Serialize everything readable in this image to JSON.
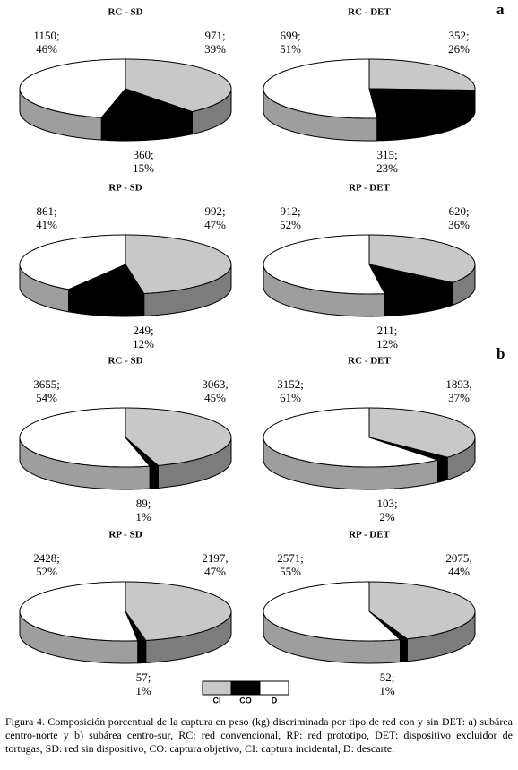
{
  "panel_labels": [
    "a",
    "b"
  ],
  "legend": {
    "labels": [
      "CI",
      "CO",
      "D"
    ],
    "colors": [
      "#c8c8c8",
      "#000000",
      "#ffffff"
    ]
  },
  "chart_data": [
    {
      "type": "pie",
      "title": "RC - SD",
      "values": [
        971,
        360,
        1150
      ],
      "value_labels": [
        "971;",
        "360;",
        "1150;"
      ],
      "percent_labels": [
        "39%",
        "15%",
        "46%"
      ]
    },
    {
      "type": "pie",
      "title": "RC - DET",
      "values": [
        352,
        315,
        699
      ],
      "value_labels": [
        "352;",
        "315;",
        "699;"
      ],
      "percent_labels": [
        "26%",
        "23%",
        "51%"
      ]
    },
    {
      "type": "pie",
      "title": "RP - SD",
      "values": [
        992,
        249,
        861
      ],
      "value_labels": [
        "992;",
        "249;",
        "861;"
      ],
      "percent_labels": [
        "47%",
        "12%",
        "41%"
      ]
    },
    {
      "type": "pie",
      "title": "RP - DET",
      "values": [
        620,
        211,
        912
      ],
      "value_labels": [
        "620;",
        "211;",
        "912;"
      ],
      "percent_labels": [
        "36%",
        "12%",
        "52%"
      ]
    },
    {
      "type": "pie",
      "title": "RC - SD",
      "values": [
        3063,
        89,
        3655
      ],
      "value_labels": [
        "3063,",
        "89;",
        "3655;"
      ],
      "percent_labels": [
        "45%",
        "1%",
        "54%"
      ]
    },
    {
      "type": "pie",
      "title": "RC - DET",
      "values": [
        1893,
        103,
        3152
      ],
      "value_labels": [
        "1893,",
        "103;",
        "3152;"
      ],
      "percent_labels": [
        "37%",
        "2%",
        "61%"
      ]
    },
    {
      "type": "pie",
      "title": "RP - SD",
      "values": [
        2197,
        57,
        2428
      ],
      "value_labels": [
        "2197,",
        "57;",
        "2428;"
      ],
      "percent_labels": [
        "47%",
        "1%",
        "52%"
      ]
    },
    {
      "type": "pie",
      "title": "RP - DET",
      "values": [
        2075,
        52,
        2571
      ],
      "value_labels": [
        "2075,",
        "52;",
        "2571;"
      ],
      "percent_labels": [
        "44%",
        "1%",
        "55%"
      ]
    }
  ],
  "caption": "Figura 4. Composición porcentual de la captura en peso (kg) discriminada por tipo de red con y sin DET: a) subárea centro-norte y b) subárea centro-sur, RC: red convencional, RP: red prototipo, DET: dispositivo excluidor de tortugas, SD: red sin dispositivo, CO: captura objetivo, CI: captura incidental, D: descarte."
}
